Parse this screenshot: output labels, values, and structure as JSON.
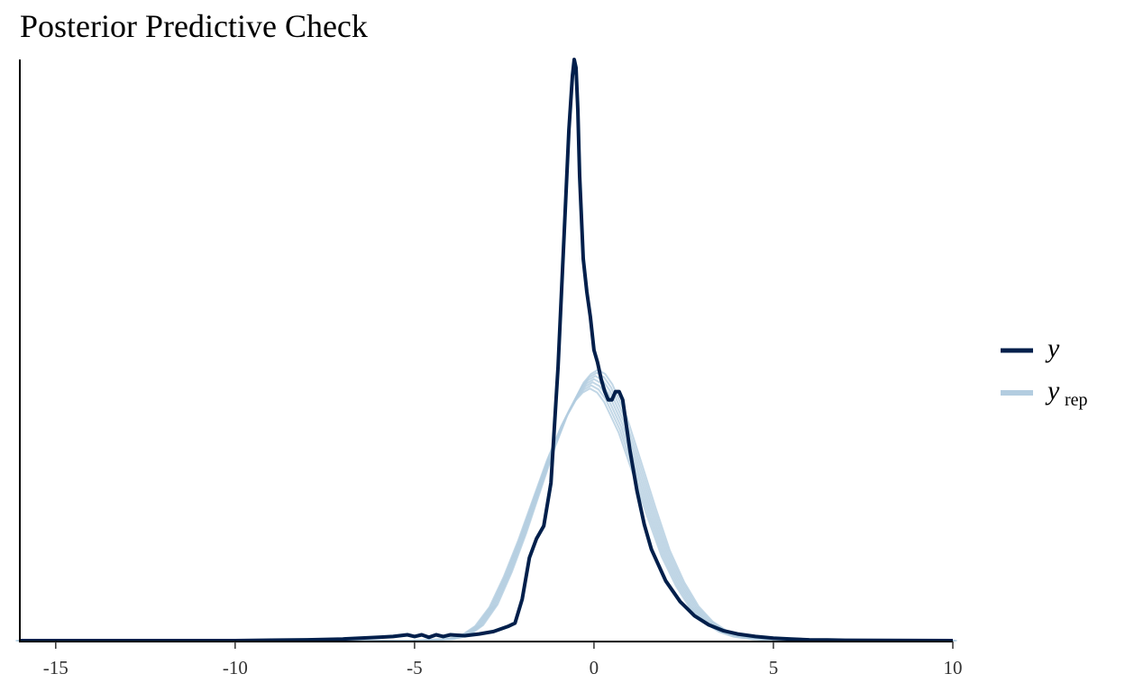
{
  "title": "Posterior Predictive Check",
  "chart_data": {
    "type": "line",
    "title": "Posterior Predictive Check",
    "xlabel": "",
    "ylabel": "",
    "xlim": [
      -16,
      10
    ],
    "ylim": [
      0,
      0.7
    ],
    "x_ticks": [
      -15,
      -10,
      -5,
      0,
      5,
      10
    ],
    "y_ticks_shown": false,
    "grid": false,
    "legend_position": "right",
    "legend": [
      {
        "label": "y",
        "color": "#011f4b"
      },
      {
        "label": "y",
        "subscript": "rep",
        "color": "#b3cde0"
      }
    ],
    "series": [
      {
        "name": "y",
        "color": "#011f4b",
        "x": [
          -16,
          -10,
          -9,
          -8,
          -7,
          -6,
          -5.6,
          -5.2,
          -5.0,
          -4.8,
          -4.6,
          -4.4,
          -4.2,
          -4.0,
          -3.6,
          -3.2,
          -2.8,
          -2.4,
          -2.2,
          -2.0,
          -1.8,
          -1.6,
          -1.4,
          -1.2,
          -1.0,
          -0.8,
          -0.7,
          -0.6,
          -0.55,
          -0.5,
          -0.45,
          -0.4,
          -0.3,
          -0.2,
          -0.1,
          0.0,
          0.1,
          0.2,
          0.3,
          0.4,
          0.5,
          0.6,
          0.7,
          0.8,
          1.0,
          1.2,
          1.4,
          1.6,
          2.0,
          2.4,
          2.8,
          3.2,
          3.6,
          4.0,
          4.5,
          5.0,
          5.5,
          6.0,
          6.5,
          7.0,
          10
        ],
        "y": [
          0,
          0,
          0.0005,
          0.001,
          0.002,
          0.004,
          0.005,
          0.007,
          0.005,
          0.007,
          0.004,
          0.007,
          0.005,
          0.007,
          0.006,
          0.008,
          0.011,
          0.017,
          0.021,
          0.05,
          0.1,
          0.123,
          0.138,
          0.19,
          0.33,
          0.52,
          0.615,
          0.68,
          0.7,
          0.69,
          0.64,
          0.56,
          0.46,
          0.42,
          0.39,
          0.35,
          0.335,
          0.315,
          0.3,
          0.29,
          0.29,
          0.3,
          0.3,
          0.29,
          0.23,
          0.18,
          0.14,
          0.11,
          0.072,
          0.047,
          0.03,
          0.019,
          0.012,
          0.008,
          0.005,
          0.003,
          0.002,
          0.001,
          0.0008,
          0.0004,
          0
        ]
      },
      {
        "name": "y_rep",
        "color": "#b3cde0",
        "x": [
          -16,
          -5,
          -4.0,
          -3.6,
          -3.2,
          -2.8,
          -2.4,
          -2.0,
          -1.6,
          -1.2,
          -0.8,
          -0.4,
          -0.2,
          0.0,
          0.2,
          0.4,
          0.8,
          1.2,
          1.6,
          2.0,
          2.4,
          2.8,
          3.2,
          3.6,
          4.0,
          4.5,
          5.0,
          6.0,
          10
        ],
        "y": [
          0,
          0,
          0.002,
          0.006,
          0.018,
          0.042,
          0.08,
          0.125,
          0.175,
          0.225,
          0.268,
          0.3,
          0.31,
          0.315,
          0.31,
          0.298,
          0.26,
          0.208,
          0.155,
          0.105,
          0.068,
          0.04,
          0.022,
          0.011,
          0.005,
          0.002,
          0.0008,
          0.0002,
          0
        ]
      }
    ]
  }
}
